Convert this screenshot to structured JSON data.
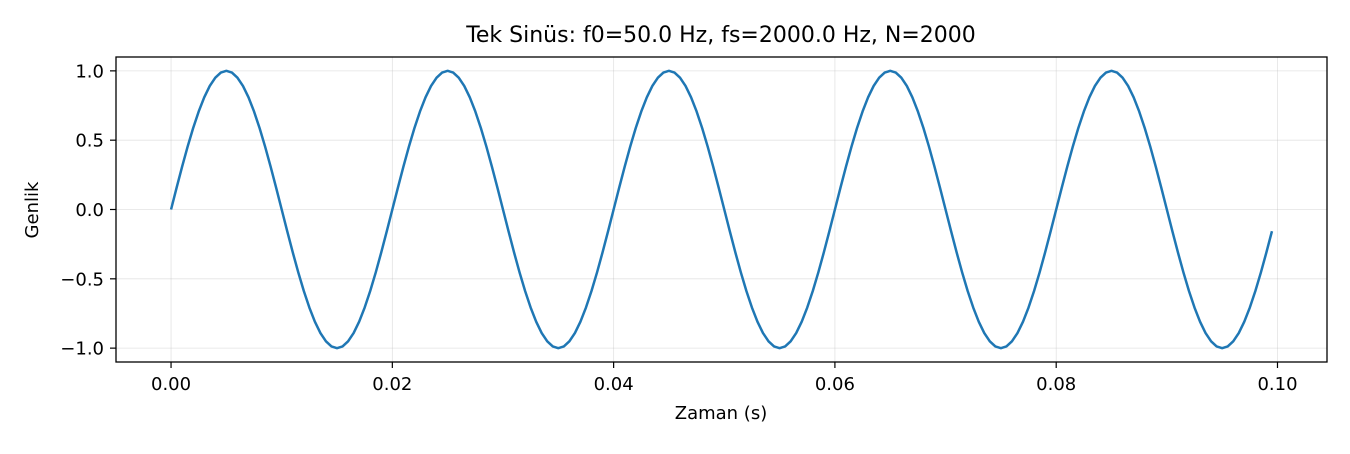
{
  "chart_data": {
    "type": "line",
    "title": "Tek Sinüs: f0=50.0 Hz, fs=2000.0 Hz, N=2000",
    "xlabel": "Zaman (s)",
    "ylabel": "Genlik",
    "xlim": [
      -0.004975,
      0.104475
    ],
    "ylim": [
      -1.1,
      1.1
    ],
    "xticks": [
      0.0,
      0.02,
      0.04,
      0.06,
      0.08,
      0.1
    ],
    "xtick_labels": [
      "0.00",
      "0.02",
      "0.04",
      "0.06",
      "0.08",
      "0.10"
    ],
    "yticks": [
      1.0,
      0.5,
      0.0,
      -0.5,
      -1.0
    ],
    "ytick_labels": [
      "1.0",
      "0.5",
      "0.0",
      "−0.5",
      "−1.0"
    ],
    "grid": true,
    "series": [
      {
        "color": "#1f77b4",
        "amplitude": 1.0,
        "frequency_hz": 50.0,
        "sample_rate_hz": 2000.0,
        "x_start": 0.0,
        "x_end": 0.0995,
        "x_step": 0.0005
      }
    ]
  }
}
